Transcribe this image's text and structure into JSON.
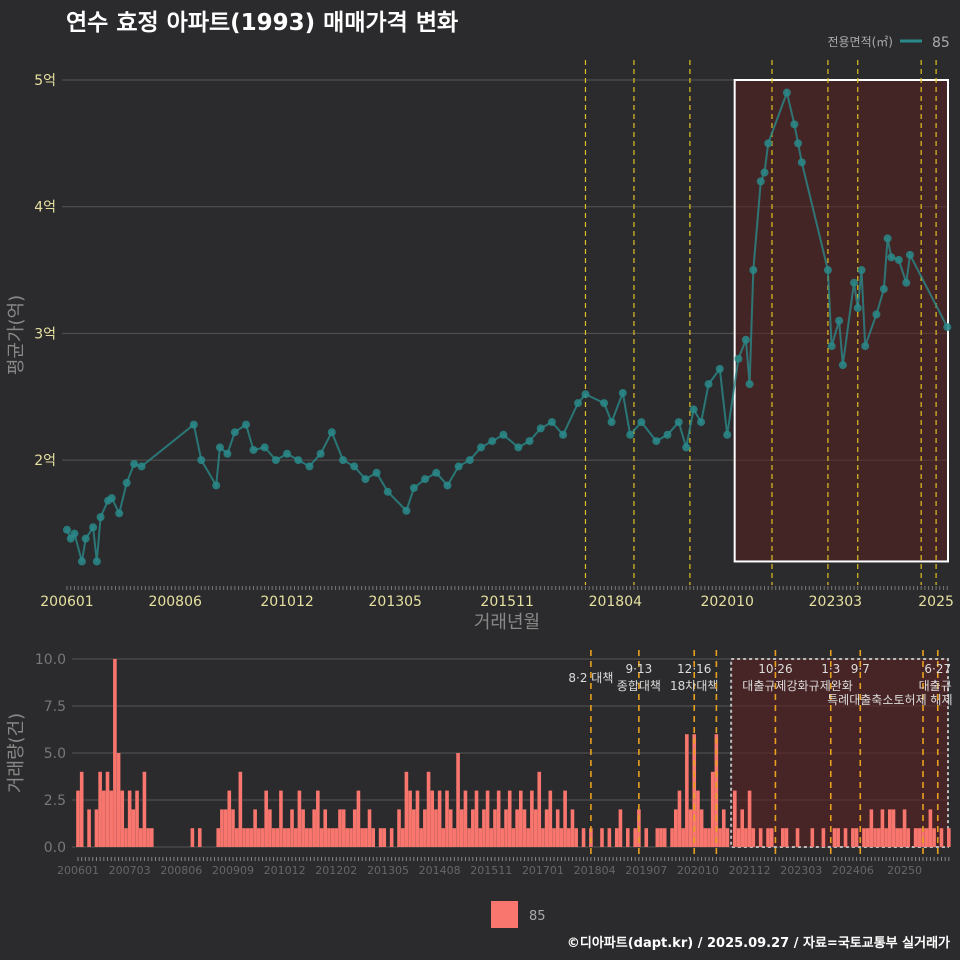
{
  "colors": {
    "bg": "#2b2b2d",
    "line": "#2a8a8a",
    "bar": "#f8766d",
    "policy": "#e0c020",
    "grid": "#555555",
    "highlight": "#5a2020"
  },
  "chart_data": [
    {
      "type": "line",
      "title": "연수 효정 아파트(1993) 매매가격 변화",
      "xlabel": "거래년월",
      "ylabel": "평균가(억)",
      "legend": {
        "title": "전용면적(㎡)",
        "entries": [
          "85"
        ],
        "placement": "top-right"
      },
      "yticks": [
        {
          "v": 2,
          "label": "2억"
        },
        {
          "v": 3,
          "label": "3억"
        },
        {
          "v": 4,
          "label": "4억"
        },
        {
          "v": 5,
          "label": "5억"
        }
      ],
      "ylim": [
        1.1,
        5.0
      ],
      "xticks": [
        "200601",
        "200806",
        "201012",
        "201305",
        "201511",
        "201804",
        "202010",
        "202303",
        "2025"
      ],
      "xtick_months": [
        "2006-01",
        "2008-06",
        "2010-12",
        "2013-05",
        "2015-11",
        "2018-04",
        "2020-10",
        "2023-03",
        "2025-06"
      ],
      "series": [
        {
          "name": "85",
          "points": [
            [
              "2006-01",
              1.45
            ],
            [
              "2006-02",
              1.38
            ],
            [
              "2006-03",
              1.42
            ],
            [
              "2006-05",
              1.2
            ],
            [
              "2006-06",
              1.38
            ],
            [
              "2006-08",
              1.47
            ],
            [
              "2006-09",
              1.2
            ],
            [
              "2006-10",
              1.55
            ],
            [
              "2006-12",
              1.68
            ],
            [
              "2007-01",
              1.7
            ],
            [
              "2007-03",
              1.58
            ],
            [
              "2007-05",
              1.82
            ],
            [
              "2007-07",
              1.97
            ],
            [
              "2007-09",
              1.95
            ],
            [
              "2008-11",
              2.28
            ],
            [
              "2009-01",
              2.0
            ],
            [
              "2009-05",
              1.8
            ],
            [
              "2009-06",
              2.1
            ],
            [
              "2009-08",
              2.05
            ],
            [
              "2009-10",
              2.22
            ],
            [
              "2010-01",
              2.28
            ],
            [
              "2010-03",
              2.08
            ],
            [
              "2010-06",
              2.1
            ],
            [
              "2010-09",
              2.0
            ],
            [
              "2010-12",
              2.05
            ],
            [
              "2011-03",
              2.0
            ],
            [
              "2011-06",
              1.95
            ],
            [
              "2011-09",
              2.05
            ],
            [
              "2011-12",
              2.22
            ],
            [
              "2012-03",
              2.0
            ],
            [
              "2012-06",
              1.95
            ],
            [
              "2012-09",
              1.85
            ],
            [
              "2012-12",
              1.9
            ],
            [
              "2013-03",
              1.75
            ],
            [
              "2013-08",
              1.6
            ],
            [
              "2013-10",
              1.78
            ],
            [
              "2014-01",
              1.85
            ],
            [
              "2014-04",
              1.9
            ],
            [
              "2014-07",
              1.8
            ],
            [
              "2014-10",
              1.95
            ],
            [
              "2015-01",
              2.0
            ],
            [
              "2015-04",
              2.1
            ],
            [
              "2015-07",
              2.15
            ],
            [
              "2015-10",
              2.2
            ],
            [
              "2016-02",
              2.1
            ],
            [
              "2016-05",
              2.15
            ],
            [
              "2016-08",
              2.25
            ],
            [
              "2016-11",
              2.3
            ],
            [
              "2017-02",
              2.2
            ],
            [
              "2017-06",
              2.45
            ],
            [
              "2017-08",
              2.52
            ],
            [
              "2018-01",
              2.45
            ],
            [
              "2018-03",
              2.3
            ],
            [
              "2018-06",
              2.53
            ],
            [
              "2018-08",
              2.2
            ],
            [
              "2018-11",
              2.3
            ],
            [
              "2019-03",
              2.15
            ],
            [
              "2019-06",
              2.2
            ],
            [
              "2019-09",
              2.3
            ],
            [
              "2019-11",
              2.1
            ],
            [
              "2020-01",
              2.4
            ],
            [
              "2020-03",
              2.3
            ],
            [
              "2020-05",
              2.6
            ],
            [
              "2020-08",
              2.72
            ],
            [
              "2020-10",
              2.2
            ],
            [
              "2021-01",
              2.8
            ],
            [
              "2021-03",
              2.95
            ],
            [
              "2021-04",
              2.6
            ],
            [
              "2021-05",
              3.5
            ],
            [
              "2021-07",
              4.2
            ],
            [
              "2021-08",
              4.27
            ],
            [
              "2021-09",
              4.5
            ],
            [
              "2022-02",
              4.9
            ],
            [
              "2022-04",
              4.65
            ],
            [
              "2022-05",
              4.5
            ],
            [
              "2022-06",
              4.35
            ],
            [
              "2023-01",
              3.5
            ],
            [
              "2023-02",
              2.9
            ],
            [
              "2023-04",
              3.1
            ],
            [
              "2023-05",
              2.75
            ],
            [
              "2023-08",
              3.4
            ],
            [
              "2023-09",
              3.2
            ],
            [
              "2023-10",
              3.5
            ],
            [
              "2023-11",
              2.9
            ],
            [
              "2024-02",
              3.15
            ],
            [
              "2024-04",
              3.35
            ],
            [
              "2024-05",
              3.75
            ],
            [
              "2024-06",
              3.6
            ],
            [
              "2024-08",
              3.58
            ],
            [
              "2024-10",
              3.4
            ],
            [
              "2024-11",
              3.62
            ],
            [
              "2025-09",
              3.05
            ]
          ]
        }
      ],
      "policy_months": [
        "2017-08",
        "2018-09",
        "2019-12",
        "2021-10",
        "2023-01",
        "2023-09",
        "2025-02",
        "2025-06"
      ],
      "highlight": {
        "from": "2020-12",
        "to": "2025-09",
        "ymin": 1.2,
        "ymax": 5.0
      }
    },
    {
      "type": "bar",
      "ylabel": "거래량(건)",
      "yticks": [
        "0.0",
        "2.5",
        "5.0",
        "7.5",
        "10.0"
      ],
      "ylim": [
        0,
        10
      ],
      "xticks": [
        "200601",
        "200703",
        "200806",
        "200909",
        "201012",
        "201202",
        "201305",
        "201408",
        "201511",
        "201701",
        "201804",
        "201907",
        "202010",
        "202112",
        "202303",
        "202406",
        "20250"
      ],
      "start_month": "2006-01",
      "legend": {
        "entries": [
          "85"
        ],
        "placement": "bottom"
      },
      "values": [
        3,
        4,
        0,
        2,
        0,
        2,
        4,
        3,
        4,
        3,
        10,
        5,
        3,
        1,
        3,
        2,
        3,
        1,
        4,
        1,
        1,
        0,
        0,
        0,
        0,
        0,
        0,
        0,
        0,
        0,
        0,
        1,
        0,
        1,
        0,
        0,
        0,
        0,
        1,
        2,
        2,
        3,
        2,
        1,
        4,
        1,
        1,
        1,
        2,
        1,
        1,
        3,
        2,
        1,
        1,
        3,
        1,
        1,
        2,
        1,
        3,
        2,
        1,
        1,
        2,
        3,
        1,
        2,
        1,
        1,
        1,
        2,
        2,
        1,
        1,
        2,
        3,
        1,
        1,
        2,
        1,
        0,
        1,
        1,
        0,
        1,
        0,
        2,
        1,
        4,
        3,
        2,
        3,
        1,
        2,
        4,
        3,
        2,
        3,
        1,
        3,
        2,
        1,
        5,
        2,
        3,
        1,
        2,
        3,
        1,
        2,
        3,
        1,
        2,
        3,
        1,
        2,
        3,
        1,
        2,
        3,
        2,
        1,
        3,
        2,
        4,
        1,
        2,
        3,
        1,
        2,
        1,
        3,
        1,
        2,
        1,
        0,
        1,
        0,
        1,
        0,
        0,
        1,
        0,
        1,
        0,
        1,
        2,
        0,
        1,
        0,
        1,
        2,
        0,
        1,
        0,
        0,
        1,
        1,
        1,
        0,
        1,
        2,
        3,
        1,
        6,
        2,
        6,
        3,
        2,
        1,
        1,
        4,
        6,
        1,
        2,
        1,
        0,
        3,
        1,
        2,
        1,
        3,
        1,
        0,
        1,
        0,
        1,
        1,
        0,
        0,
        1,
        1,
        0,
        0,
        1,
        0,
        0,
        0,
        1,
        0,
        0,
        1,
        0,
        0,
        1,
        1,
        0,
        1,
        0,
        1,
        1,
        0,
        1,
        1,
        2,
        1,
        1,
        2,
        1,
        2,
        2,
        1,
        1,
        2,
        1,
        0,
        1,
        1,
        1,
        1,
        2,
        1,
        0,
        1,
        0,
        1
      ],
      "policies": [
        {
          "month": "2017-08",
          "date": "",
          "label": "8·2 대책"
        },
        {
          "month": "2018-09",
          "date": "9·13",
          "label": "종합대책"
        },
        {
          "month": "2019-12",
          "date": "12·16",
          "label": "18차대책"
        },
        {
          "month": "2020-06",
          "date": "",
          "label": ""
        },
        {
          "month": "2021-10",
          "date": "10·26",
          "label": "대출규제강화"
        },
        {
          "month": "2023-01",
          "date": "1·3",
          "label": "규제완화"
        },
        {
          "month": "2023-09",
          "date": "9·7",
          "label": "특례대출축소"
        },
        {
          "month": "2025-02",
          "date": "",
          "label": "토허제 해제"
        },
        {
          "month": "2025-06",
          "date": "6·27",
          "label": "대출규"
        }
      ],
      "highlight": {
        "from": "2020-10",
        "to": "2025-09"
      }
    }
  ],
  "footer": "©디아파트(dapt.kr) / 2025.09.27 / 자료=국토교통부 실거래가"
}
